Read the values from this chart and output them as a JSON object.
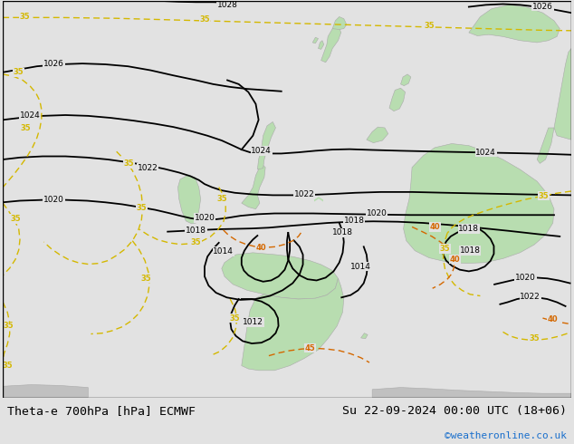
{
  "title_left": "Theta-e 700hPa [hPa] ECMWF",
  "title_right": "Su 22-09-2024 00:00 UTC (18+06)",
  "credit": "©weatheronline.co.uk",
  "bg_color": "#e2e2e2",
  "land_green": "#b8ddb0",
  "land_gray": "#c0c0c0",
  "sea_color": "#e2e2e2",
  "black": "#000000",
  "yellow": "#d4b800",
  "orange": "#d46800",
  "figwidth": 6.34,
  "figheight": 4.9,
  "dpi": 100,
  "title_fontsize": 9.5,
  "credit_fontsize": 8,
  "credit_color": "#1a6fcc"
}
